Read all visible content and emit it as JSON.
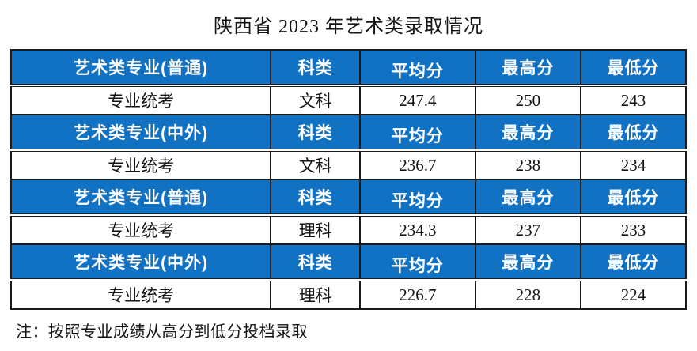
{
  "title": "陕西省 2023 年艺术类录取情况",
  "note": "注：按照专业成绩从高分到低分投档录取",
  "colors": {
    "header_bg": "#1172C4",
    "header_text": "#FFFFFF",
    "border": "#1B1B1B",
    "page_bg": "#FFFFFF",
    "body_text": "#141414"
  },
  "table": {
    "header_labels": {
      "subject": "科类",
      "avg": "平均分",
      "max": "最高分",
      "min": "最低分"
    },
    "groups": [
      {
        "category": "艺术类专业(普通)",
        "row": {
          "name": "专业统考",
          "subject": "文科",
          "avg": "247.4",
          "max": "250",
          "min": "243"
        }
      },
      {
        "category": "艺术类专业(中外)",
        "row": {
          "name": "专业统考",
          "subject": "文科",
          "avg": "236.7",
          "max": "238",
          "min": "234"
        }
      },
      {
        "category": "艺术类专业(普通)",
        "row": {
          "name": "专业统考",
          "subject": "理科",
          "avg": "234.3",
          "max": "237",
          "min": "233"
        }
      },
      {
        "category": "艺术类专业(中外)",
        "row": {
          "name": "专业统考",
          "subject": "理科",
          "avg": "226.7",
          "max": "228",
          "min": "224"
        }
      }
    ]
  }
}
